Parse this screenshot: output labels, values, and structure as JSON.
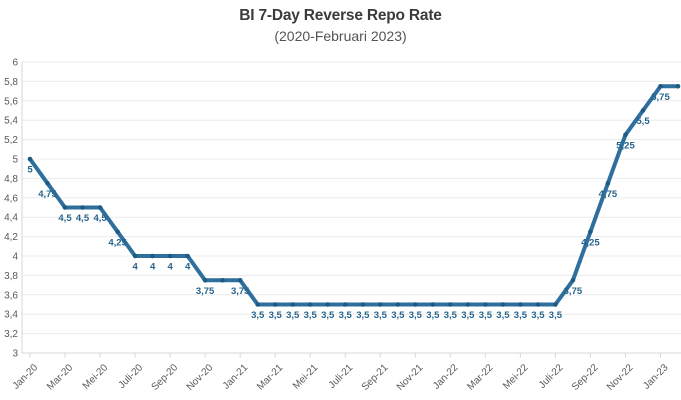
{
  "chart_data": {
    "type": "line",
    "title": "BI 7-Day Reverse Repo Rate",
    "subtitle": "(2020-Februari 2023)",
    "n_points": 38,
    "x_tick_labels": [
      "Jan-20",
      "Mar-20",
      "Mei-20",
      "Juli-20",
      "Sep-20",
      "Nov-20",
      "Jan-21",
      "Mar-21",
      "Mei-21",
      "Juli-21",
      "Sep-21",
      "Nov-21",
      "Jan-22",
      "Mar-22",
      "Mei-22",
      "Juli-22",
      "Sep-22",
      "Nov-22",
      "Jan-23"
    ],
    "tick_every": 2,
    "values": [
      5,
      4.75,
      4.5,
      4.5,
      4.5,
      4.25,
      4,
      4,
      4,
      4,
      3.75,
      3.75,
      3.75,
      3.5,
      3.5,
      3.5,
      3.5,
      3.5,
      3.5,
      3.5,
      3.5,
      3.5,
      3.5,
      3.5,
      3.5,
      3.5,
      3.5,
      3.5,
      3.5,
      3.5,
      3.5,
      3.75,
      4.25,
      4.75,
      5.25,
      5.5,
      5.75,
      5.75
    ],
    "point_labels": [
      "5",
      "4,75",
      "4,5",
      "4,5",
      "4,5",
      "4,25",
      "4",
      "4",
      "4",
      "4",
      "3,75",
      "",
      "3,75",
      "3,5",
      "3,5",
      "3,5",
      "3,5",
      "3,5",
      "3,5",
      "3,5",
      "3,5",
      "3,5",
      "3,5",
      "3,5",
      "3,5",
      "3,5",
      "3,5",
      "3,5",
      "3,5",
      "3,5",
      "3,5",
      "3,75",
      "4,25",
      "4,75",
      "5,25",
      "5,5",
      "5,75",
      ""
    ],
    "y_tick_labels": [
      "6",
      "5,8",
      "5,6",
      "5,4",
      "5,2",
      "5",
      "4,8",
      "4,6",
      "4,4",
      "4,2",
      "4",
      "3,8",
      "3,6",
      "3,4",
      "3,2",
      "3"
    ],
    "ylim": [
      3,
      6
    ],
    "ytick_step": 0.2,
    "grid": true,
    "legend": "none",
    "colors": {
      "line": "#2e6f9e",
      "marker": "#1e5a84",
      "data_label": "#26648e",
      "gridline": "#ececec",
      "axis_line": "#d7d7d7",
      "tick_label": "#595959",
      "title": "#3b3b3b",
      "subtitle": "#545454",
      "background": "#ffffff"
    }
  }
}
